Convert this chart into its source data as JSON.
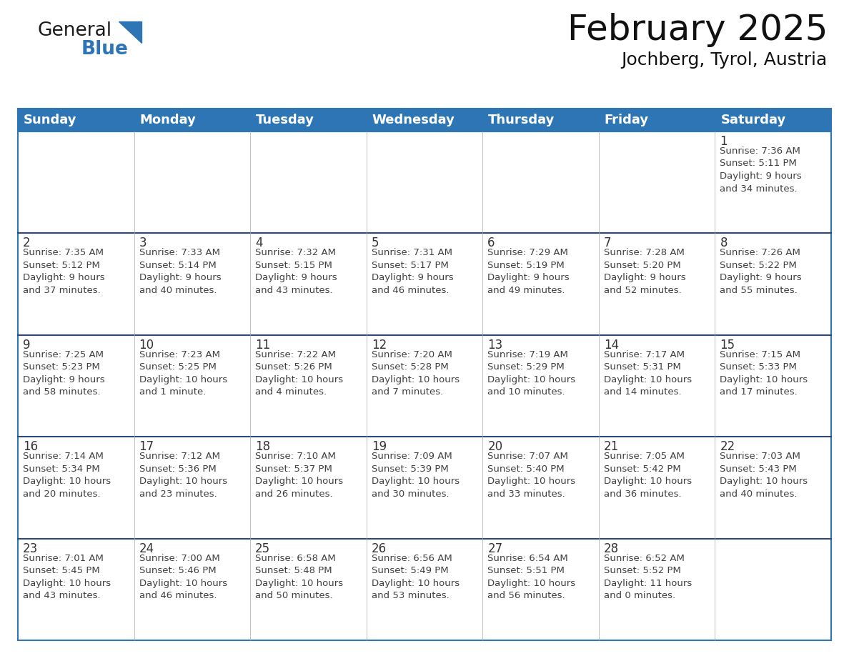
{
  "title": "February 2025",
  "subtitle": "Jochberg, Tyrol, Austria",
  "header_bg": "#2E75B6",
  "header_text_color": "#FFFFFF",
  "cell_bg": "#FFFFFF",
  "row_divider_color": "#2E4A7A",
  "cell_text_color": "#404040",
  "day_number_color": "#333333",
  "border_color": "#2E75B6",
  "days_of_week": [
    "Sunday",
    "Monday",
    "Tuesday",
    "Wednesday",
    "Thursday",
    "Friday",
    "Saturday"
  ],
  "weeks": [
    [
      {
        "day": null,
        "info": null
      },
      {
        "day": null,
        "info": null
      },
      {
        "day": null,
        "info": null
      },
      {
        "day": null,
        "info": null
      },
      {
        "day": null,
        "info": null
      },
      {
        "day": null,
        "info": null
      },
      {
        "day": 1,
        "info": "Sunrise: 7:36 AM\nSunset: 5:11 PM\nDaylight: 9 hours\nand 34 minutes."
      }
    ],
    [
      {
        "day": 2,
        "info": "Sunrise: 7:35 AM\nSunset: 5:12 PM\nDaylight: 9 hours\nand 37 minutes."
      },
      {
        "day": 3,
        "info": "Sunrise: 7:33 AM\nSunset: 5:14 PM\nDaylight: 9 hours\nand 40 minutes."
      },
      {
        "day": 4,
        "info": "Sunrise: 7:32 AM\nSunset: 5:15 PM\nDaylight: 9 hours\nand 43 minutes."
      },
      {
        "day": 5,
        "info": "Sunrise: 7:31 AM\nSunset: 5:17 PM\nDaylight: 9 hours\nand 46 minutes."
      },
      {
        "day": 6,
        "info": "Sunrise: 7:29 AM\nSunset: 5:19 PM\nDaylight: 9 hours\nand 49 minutes."
      },
      {
        "day": 7,
        "info": "Sunrise: 7:28 AM\nSunset: 5:20 PM\nDaylight: 9 hours\nand 52 minutes."
      },
      {
        "day": 8,
        "info": "Sunrise: 7:26 AM\nSunset: 5:22 PM\nDaylight: 9 hours\nand 55 minutes."
      }
    ],
    [
      {
        "day": 9,
        "info": "Sunrise: 7:25 AM\nSunset: 5:23 PM\nDaylight: 9 hours\nand 58 minutes."
      },
      {
        "day": 10,
        "info": "Sunrise: 7:23 AM\nSunset: 5:25 PM\nDaylight: 10 hours\nand 1 minute."
      },
      {
        "day": 11,
        "info": "Sunrise: 7:22 AM\nSunset: 5:26 PM\nDaylight: 10 hours\nand 4 minutes."
      },
      {
        "day": 12,
        "info": "Sunrise: 7:20 AM\nSunset: 5:28 PM\nDaylight: 10 hours\nand 7 minutes."
      },
      {
        "day": 13,
        "info": "Sunrise: 7:19 AM\nSunset: 5:29 PM\nDaylight: 10 hours\nand 10 minutes."
      },
      {
        "day": 14,
        "info": "Sunrise: 7:17 AM\nSunset: 5:31 PM\nDaylight: 10 hours\nand 14 minutes."
      },
      {
        "day": 15,
        "info": "Sunrise: 7:15 AM\nSunset: 5:33 PM\nDaylight: 10 hours\nand 17 minutes."
      }
    ],
    [
      {
        "day": 16,
        "info": "Sunrise: 7:14 AM\nSunset: 5:34 PM\nDaylight: 10 hours\nand 20 minutes."
      },
      {
        "day": 17,
        "info": "Sunrise: 7:12 AM\nSunset: 5:36 PM\nDaylight: 10 hours\nand 23 minutes."
      },
      {
        "day": 18,
        "info": "Sunrise: 7:10 AM\nSunset: 5:37 PM\nDaylight: 10 hours\nand 26 minutes."
      },
      {
        "day": 19,
        "info": "Sunrise: 7:09 AM\nSunset: 5:39 PM\nDaylight: 10 hours\nand 30 minutes."
      },
      {
        "day": 20,
        "info": "Sunrise: 7:07 AM\nSunset: 5:40 PM\nDaylight: 10 hours\nand 33 minutes."
      },
      {
        "day": 21,
        "info": "Sunrise: 7:05 AM\nSunset: 5:42 PM\nDaylight: 10 hours\nand 36 minutes."
      },
      {
        "day": 22,
        "info": "Sunrise: 7:03 AM\nSunset: 5:43 PM\nDaylight: 10 hours\nand 40 minutes."
      }
    ],
    [
      {
        "day": 23,
        "info": "Sunrise: 7:01 AM\nSunset: 5:45 PM\nDaylight: 10 hours\nand 43 minutes."
      },
      {
        "day": 24,
        "info": "Sunrise: 7:00 AM\nSunset: 5:46 PM\nDaylight: 10 hours\nand 46 minutes."
      },
      {
        "day": 25,
        "info": "Sunrise: 6:58 AM\nSunset: 5:48 PM\nDaylight: 10 hours\nand 50 minutes."
      },
      {
        "day": 26,
        "info": "Sunrise: 6:56 AM\nSunset: 5:49 PM\nDaylight: 10 hours\nand 53 minutes."
      },
      {
        "day": 27,
        "info": "Sunrise: 6:54 AM\nSunset: 5:51 PM\nDaylight: 10 hours\nand 56 minutes."
      },
      {
        "day": 28,
        "info": "Sunrise: 6:52 AM\nSunset: 5:52 PM\nDaylight: 11 hours\nand 0 minutes."
      },
      {
        "day": null,
        "info": null
      }
    ]
  ],
  "logo_color_general": "#1a1a1a",
  "logo_color_blue": "#2E75B6",
  "logo_triangle_color": "#2E75B6",
  "title_fontsize": 36,
  "subtitle_fontsize": 18,
  "header_fontsize": 13,
  "day_number_fontsize": 12,
  "cell_text_fontsize": 9.5
}
